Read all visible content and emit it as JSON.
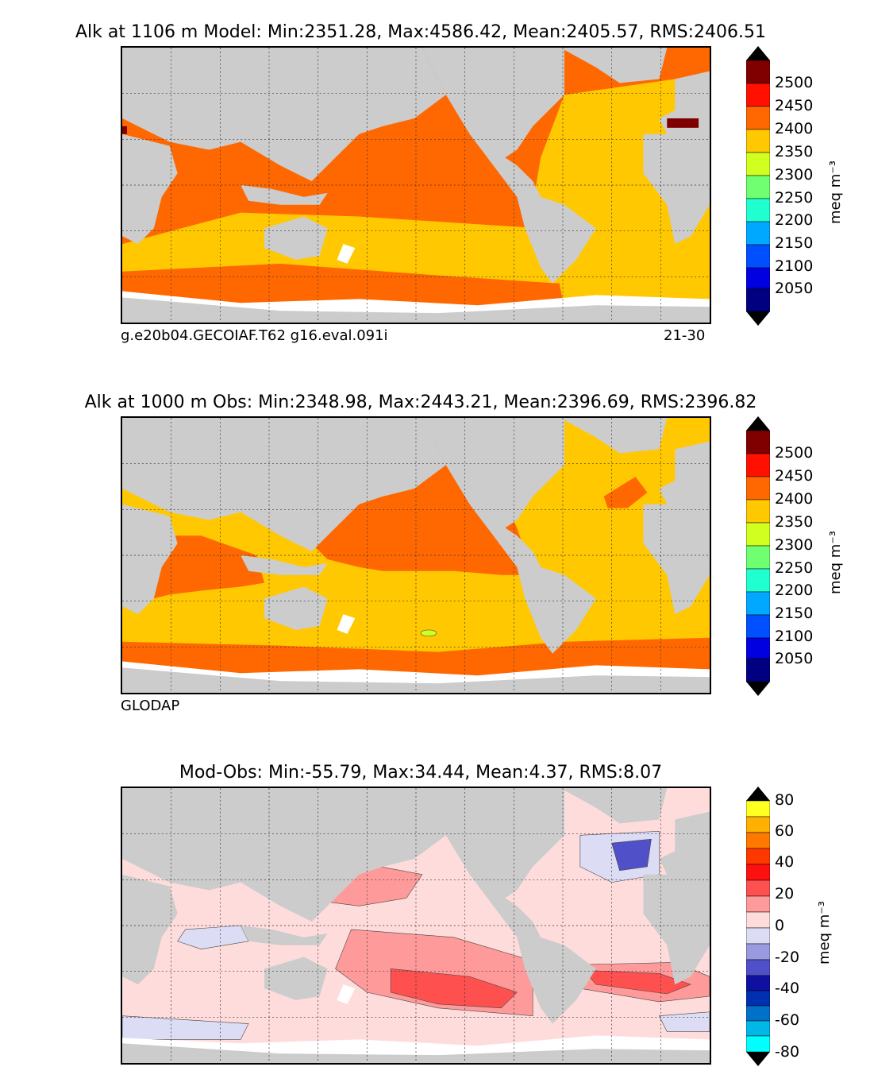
{
  "panels": [
    {
      "title": "Alk at 1106 m Model: Min:2351.28, Max:4586.42, Mean:2405.57, RMS:2406.51",
      "footer_left": "g.e20b04.GECOIAF.T62 g16.eval.091i",
      "footer_right": "21-30",
      "colorbar": {
        "ticks": [
          "2500",
          "2450",
          "2400",
          "2350",
          "2300",
          "2250",
          "2200",
          "2150",
          "2100",
          "2050"
        ],
        "unit": "meq m⁻³",
        "colors": [
          "#000080",
          "#0000e0",
          "#0050ff",
          "#00a8ff",
          "#20ffd0",
          "#70ff70",
          "#d0ff20",
          "#ffc800",
          "#ff6800",
          "#ff1000",
          "#800000"
        ]
      }
    },
    {
      "title": "Alk at 1000 m Obs: Min:2348.98, Max:2443.21, Mean:2396.69, RMS:2396.82",
      "footer_left": "GLODAP",
      "footer_right": "",
      "colorbar": {
        "ticks": [
          "2500",
          "2450",
          "2400",
          "2350",
          "2300",
          "2250",
          "2200",
          "2150",
          "2100",
          "2050"
        ],
        "unit": "meq m⁻³",
        "colors": [
          "#000080",
          "#0000e0",
          "#0050ff",
          "#00a8ff",
          "#20ffd0",
          "#70ff70",
          "#d0ff20",
          "#ffc800",
          "#ff6800",
          "#ff1000",
          "#800000"
        ]
      }
    },
    {
      "title": "Mod-Obs: Min:-55.79, Max:34.44, Mean:4.37, RMS:8.07",
      "footer_left": "",
      "footer_right": "",
      "colorbar": {
        "ticks": [
          "80",
          "60",
          "40",
          "20",
          "0",
          "-20",
          "-40",
          "-60",
          "-80"
        ],
        "unit": "meq m⁻³",
        "colors": [
          "#00ffff",
          "#00b8e8",
          "#0070c8",
          "#0030b0",
          "#1010a0",
          "#5050c8",
          "#9a9ae0",
          "#dcdcf4",
          "#ffdcdc",
          "#ff9a9a",
          "#ff5050",
          "#ff1010",
          "#ff3800",
          "#ff7800",
          "#ffb000",
          "#ffff20"
        ]
      }
    }
  ],
  "colors": {
    "land": "#cccccc",
    "orange": "#ff6800",
    "yellow": "#ffc800",
    "lightpink": "#ffdcdc",
    "pink": "#ff9a9a",
    "red": "#ff5050",
    "lavender": "#dcdcf4",
    "blue": "#5050c8"
  }
}
